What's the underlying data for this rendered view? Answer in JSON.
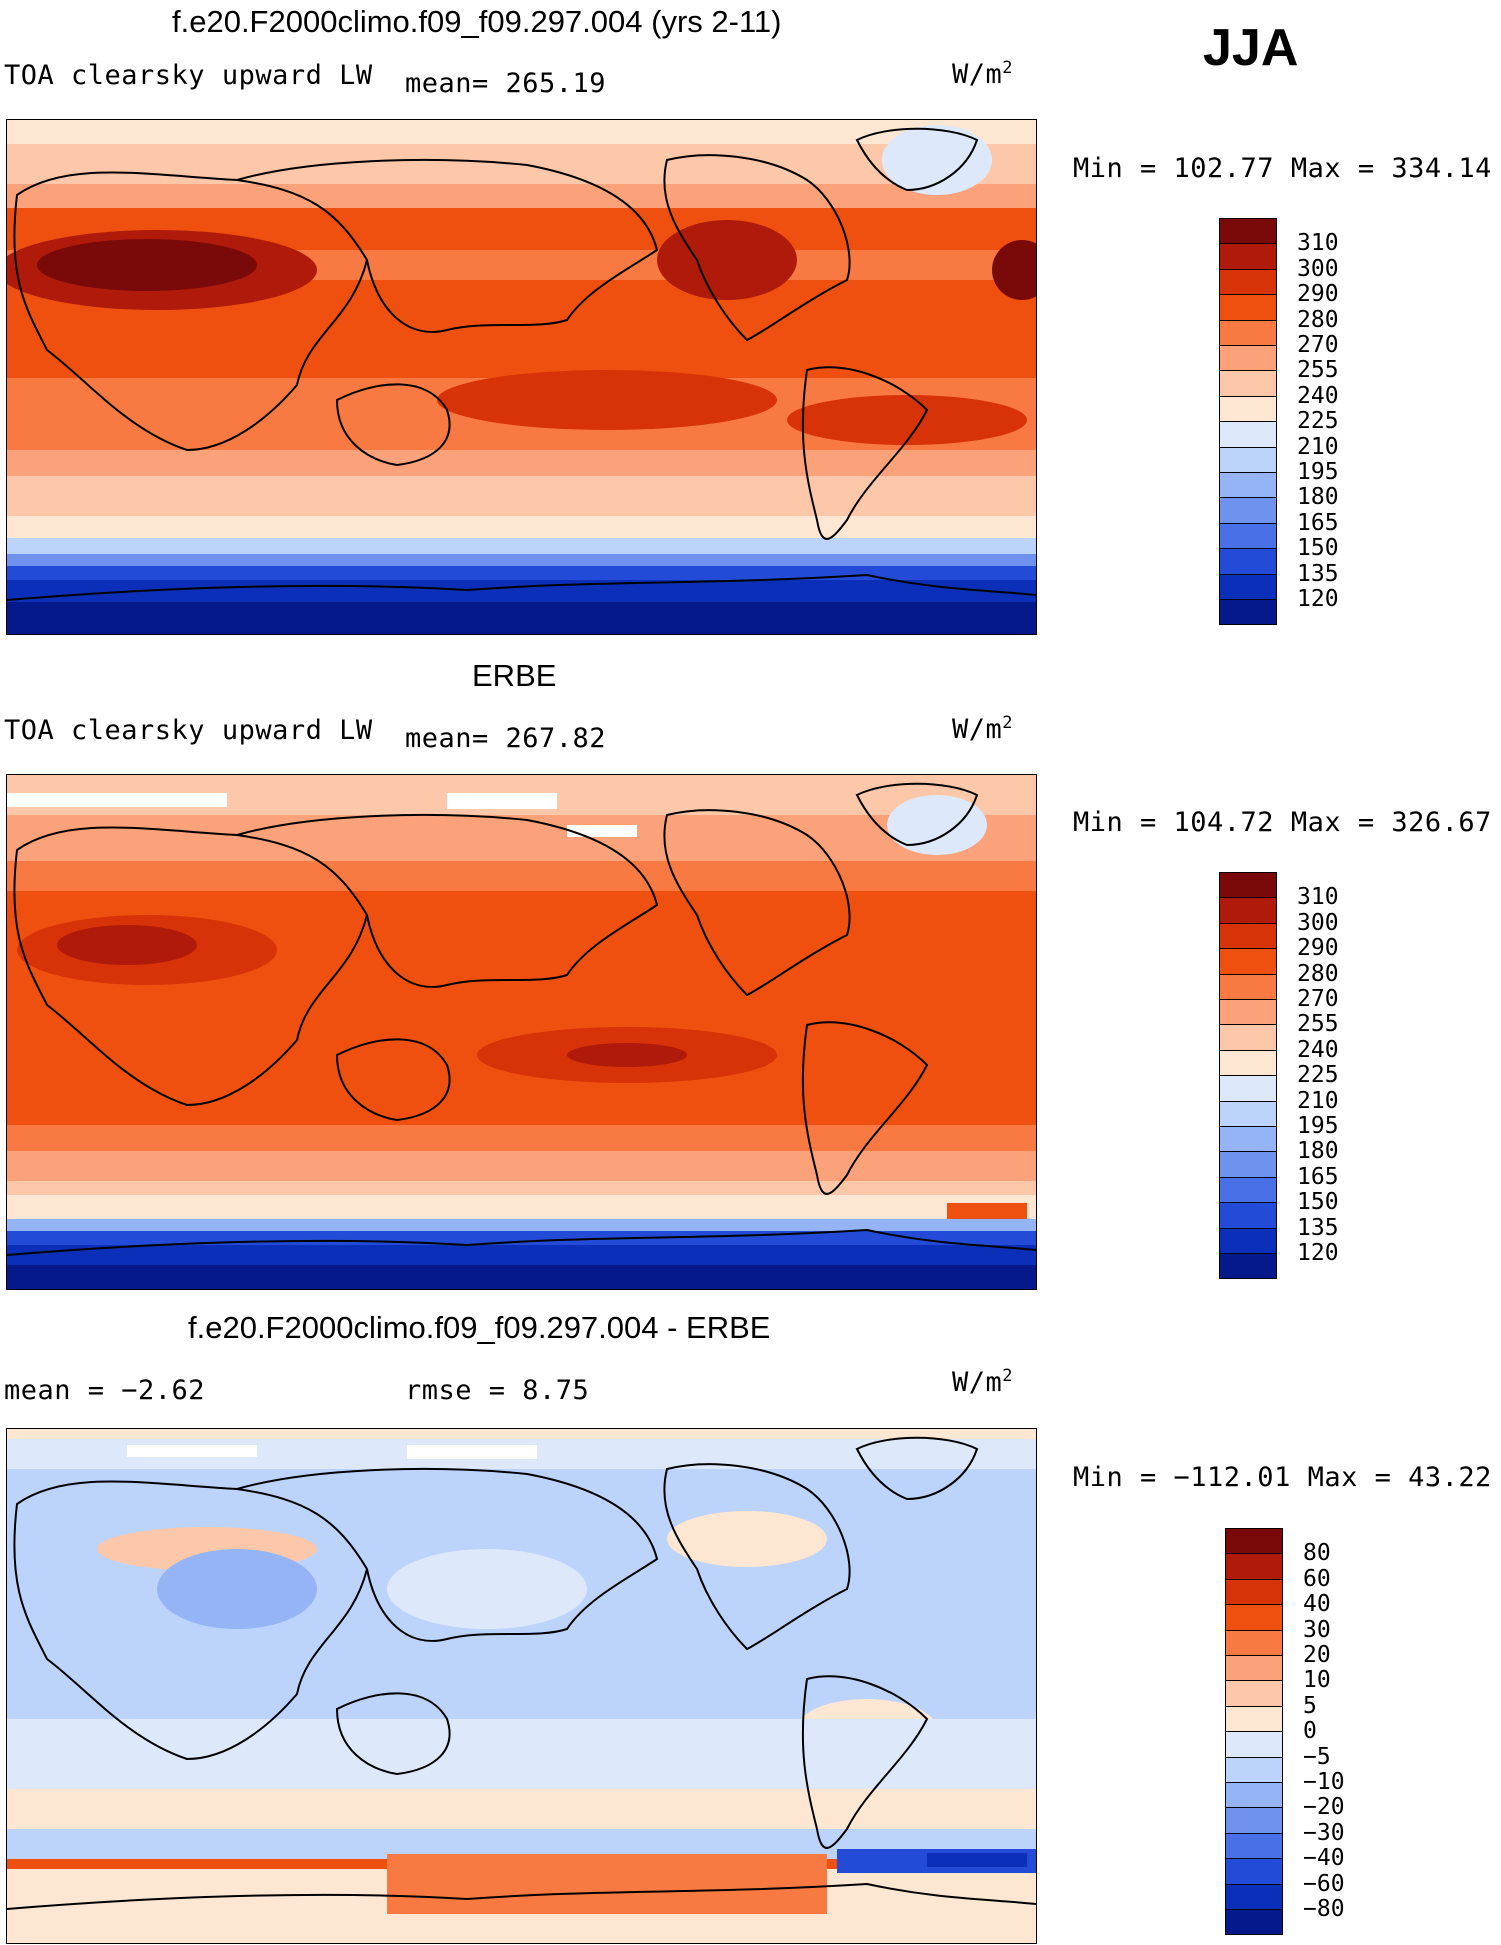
{
  "season": "JJA",
  "colors": {
    "abs_scale": [
      "#7a0a0a",
      "#b01a0a",
      "#d83208",
      "#f0500f",
      "#f87a42",
      "#fca27a",
      "#fdc8aa",
      "#fde6d2",
      "#dde9fb",
      "#bcd3fb",
      "#94b4f5",
      "#6f92ef",
      "#4a70e8",
      "#244bd8",
      "#0b2fb8",
      "#06198a"
    ],
    "diff_scale": [
      "#7a0a0a",
      "#b01a0a",
      "#d83208",
      "#f0500f",
      "#f87a42",
      "#fca27a",
      "#fdc8aa",
      "#fde6d2",
      "#dde9fb",
      "#bcd3fb",
      "#94b4f5",
      "#6f92ef",
      "#4a70e8",
      "#244bd8",
      "#0b2fb8",
      "#06198a"
    ]
  },
  "panels": [
    {
      "title": "f.e20.F2000climo.f09_f09.297.004 (yrs 2-11)",
      "variable": "TOA clearsky upward LW",
      "stat_left": "mean=  265.19",
      "stat_right": "",
      "units_base": "W/m",
      "units_exp": "2",
      "minmax": "Min  =  102.77  Max  =  334.14",
      "levels": [
        "310",
        "300",
        "290",
        "280",
        "270",
        "255",
        "240",
        "225",
        "210",
        "195",
        "180",
        "165",
        "150",
        "135",
        "120"
      ]
    },
    {
      "title": "ERBE",
      "variable": "TOA clearsky upward LW",
      "stat_left": "mean=  267.82",
      "stat_right": "",
      "units_base": "W/m",
      "units_exp": "2",
      "minmax": "Min  =  104.72  Max  =  326.67",
      "levels": [
        "310",
        "300",
        "290",
        "280",
        "270",
        "255",
        "240",
        "225",
        "210",
        "195",
        "180",
        "165",
        "150",
        "135",
        "120"
      ]
    },
    {
      "title": "f.e20.F2000climo.f09_f09.297.004 - ERBE",
      "variable": "",
      "stat_left": "mean  =   −2.62",
      "stat_right": "rmse  =    8.75",
      "units_base": "W/m",
      "units_exp": "2",
      "minmax": "Min  =  −112.01  Max  =   43.22",
      "levels": [
        "80",
        "60",
        "40",
        "30",
        "20",
        "10",
        "5",
        "0",
        "−5",
        "−10",
        "−20",
        "−30",
        "−40",
        "−60",
        "−80"
      ]
    }
  ]
}
